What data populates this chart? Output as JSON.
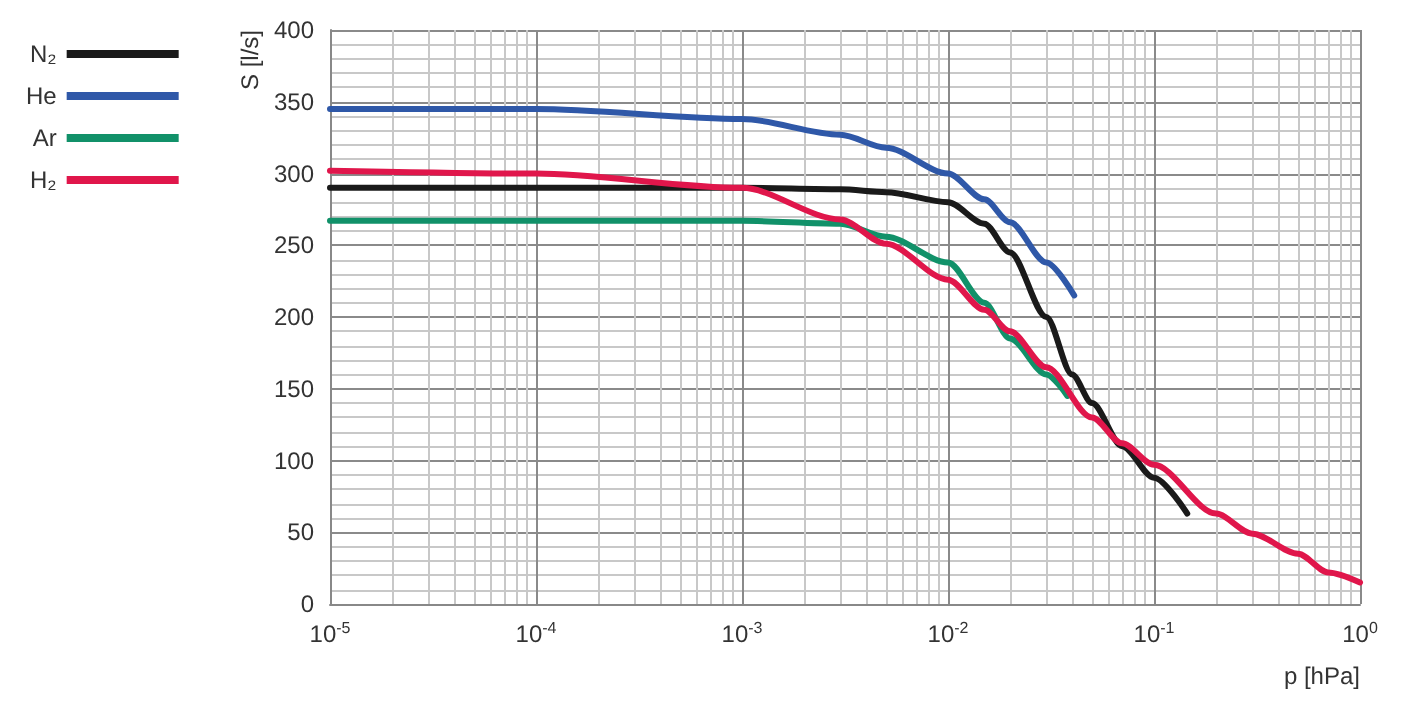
{
  "chart_data": {
    "type": "line",
    "xlabel": "p [hPa]",
    "ylabel": "S [l/s]",
    "log": "x",
    "xlim": [
      1e-05,
      1
    ],
    "xticks": [
      {
        "value": 1e-05,
        "label": "10$^{-5}$"
      },
      {
        "value": 0.0001,
        "label": "10$^{-4}$"
      },
      {
        "value": 0.001,
        "label": "10$^{-3}$"
      },
      {
        "value": 0.01,
        "label": "10$^{-2}$"
      },
      {
        "value": 0.1,
        "label": "10$^{-1}$"
      },
      {
        "value": 1,
        "label": "10$^{0}$"
      }
    ],
    "ylim": [
      0,
      400
    ],
    "yticks": [
      0,
      50,
      100,
      150,
      200,
      250,
      300,
      350,
      400
    ],
    "grid": true,
    "legend": "top left",
    "line_style": "solid",
    "marker": "none",
    "series": [
      {
        "name": "N₂",
        "color": "#1a1a1a",
        "x": [
          1e-05,
          0.0001,
          0.001,
          0.003,
          0.005,
          0.01,
          0.015,
          0.02,
          0.03,
          0.04,
          0.05,
          0.07,
          0.1,
          0.145
        ],
        "values": [
          290,
          290,
          290,
          289,
          287,
          280,
          265,
          245,
          200,
          160,
          140,
          110,
          88,
          63
        ]
      },
      {
        "name": "He",
        "color": "#2f58a8",
        "x": [
          1e-05,
          0.0001,
          0.001,
          0.003,
          0.005,
          0.01,
          0.015,
          0.02,
          0.03,
          0.041
        ],
        "values": [
          345,
          345,
          338,
          327,
          318,
          300,
          282,
          266,
          238,
          215
        ]
      },
      {
        "name": "Ar",
        "color": "#119169",
        "x": [
          1e-05,
          0.0001,
          0.001,
          0.003,
          0.005,
          0.01,
          0.015,
          0.02,
          0.03,
          0.038
        ],
        "values": [
          267,
          267,
          267,
          265,
          256,
          238,
          210,
          185,
          160,
          145
        ]
      },
      {
        "name": "H₂",
        "color": "#e0164b",
        "x": [
          1e-05,
          0.0001,
          0.001,
          0.003,
          0.005,
          0.01,
          0.015,
          0.02,
          0.03,
          0.05,
          0.07,
          0.1,
          0.2,
          0.3,
          0.5,
          0.7,
          1
        ],
        "values": [
          302,
          300,
          290,
          268,
          251,
          226,
          205,
          190,
          165,
          130,
          112,
          97,
          63,
          49,
          35,
          22,
          15
        ]
      }
    ]
  }
}
